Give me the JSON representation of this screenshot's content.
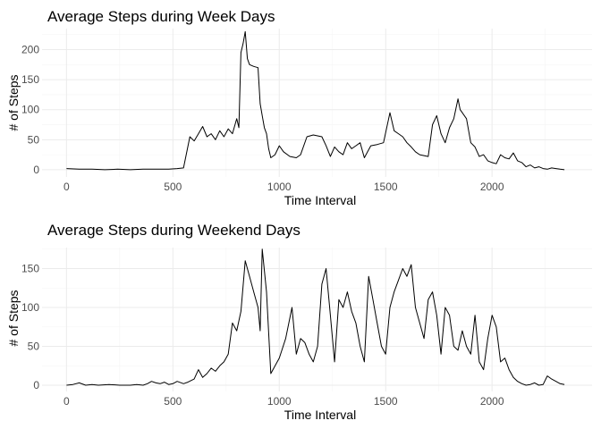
{
  "chart_data": [
    {
      "type": "line",
      "title": "Average Steps during Week Days",
      "xlabel": "Time Interval",
      "ylabel": "# of Steps",
      "xlim": [
        -115,
        2470
      ],
      "ylim": [
        -12,
        235
      ],
      "xticks": [
        0,
        500,
        1000,
        1500,
        2000
      ],
      "yticks": [
        0,
        50,
        100,
        150,
        200
      ],
      "grid": true,
      "series": [
        {
          "x": [
            0,
            60,
            120,
            180,
            240,
            300,
            360,
            420,
            480,
            520,
            550,
            580,
            600,
            620,
            640,
            660,
            680,
            700,
            720,
            740,
            760,
            780,
            800,
            810,
            820,
            830,
            840,
            850,
            860,
            880,
            900,
            910,
            920,
            930,
            940,
            950,
            960,
            980,
            1000,
            1020,
            1050,
            1080,
            1100,
            1130,
            1160,
            1200,
            1220,
            1240,
            1260,
            1280,
            1300,
            1320,
            1340,
            1360,
            1380,
            1400,
            1430,
            1460,
            1490,
            1520,
            1540,
            1560,
            1580,
            1600,
            1620,
            1640,
            1660,
            1700,
            1720,
            1740,
            1760,
            1780,
            1800,
            1820,
            1840,
            1850,
            1860,
            1880,
            1900,
            1920,
            1940,
            1960,
            1980,
            2000,
            2020,
            2040,
            2060,
            2080,
            2100,
            2120,
            2140,
            2160,
            2180,
            2200,
            2220,
            2240,
            2260,
            2280,
            2300,
            2320,
            2340
          ],
          "y": [
            2,
            1,
            1,
            0,
            1,
            0,
            1,
            1,
            1,
            2,
            3,
            55,
            48,
            60,
            72,
            55,
            60,
            50,
            65,
            55,
            68,
            60,
            85,
            70,
            195,
            210,
            230,
            185,
            175,
            172,
            170,
            110,
            90,
            70,
            60,
            35,
            20,
            25,
            40,
            30,
            22,
            20,
            25,
            55,
            58,
            55,
            40,
            22,
            38,
            30,
            25,
            45,
            35,
            40,
            45,
            20,
            40,
            42,
            45,
            95,
            65,
            60,
            55,
            45,
            38,
            30,
            25,
            22,
            75,
            90,
            60,
            45,
            70,
            85,
            118,
            100,
            95,
            85,
            45,
            38,
            22,
            25,
            15,
            12,
            10,
            25,
            20,
            18,
            28,
            15,
            12,
            5,
            8,
            3,
            5,
            2,
            1,
            3,
            2,
            1,
            0
          ]
        }
      ]
    },
    {
      "type": "line",
      "title": "Average Steps during Weekend Days",
      "xlabel": "Time Interval",
      "ylabel": "# of Steps",
      "xlim": [
        -115,
        2470
      ],
      "ylim": [
        -8,
        177
      ],
      "xticks": [
        0,
        500,
        1000,
        1500,
        2000
      ],
      "yticks": [
        0,
        50,
        100,
        150
      ],
      "grid": true,
      "series": [
        {
          "x": [
            0,
            30,
            60,
            90,
            120,
            150,
            200,
            250,
            300,
            330,
            360,
            380,
            400,
            420,
            440,
            460,
            480,
            500,
            520,
            550,
            570,
            600,
            620,
            640,
            660,
            680,
            700,
            720,
            740,
            760,
            780,
            800,
            820,
            840,
            860,
            880,
            900,
            910,
            920,
            940,
            960,
            1000,
            1030,
            1060,
            1080,
            1100,
            1120,
            1140,
            1160,
            1180,
            1200,
            1220,
            1240,
            1260,
            1280,
            1300,
            1320,
            1340,
            1360,
            1380,
            1400,
            1420,
            1440,
            1460,
            1480,
            1500,
            1520,
            1540,
            1560,
            1580,
            1600,
            1620,
            1640,
            1660,
            1680,
            1700,
            1720,
            1740,
            1760,
            1780,
            1800,
            1820,
            1840,
            1860,
            1880,
            1900,
            1920,
            1940,
            1960,
            1980,
            2000,
            2020,
            2040,
            2060,
            2080,
            2100,
            2120,
            2140,
            2160,
            2180,
            2200,
            2220,
            2240,
            2260,
            2280,
            2300,
            2320,
            2340
          ],
          "y": [
            0,
            1,
            3,
            0,
            1,
            0,
            1,
            0,
            0,
            1,
            0,
            2,
            5,
            3,
            2,
            4,
            1,
            2,
            5,
            2,
            4,
            8,
            20,
            10,
            15,
            22,
            18,
            25,
            30,
            40,
            80,
            70,
            95,
            160,
            140,
            120,
            100,
            70,
            175,
            120,
            15,
            35,
            60,
            100,
            40,
            60,
            55,
            40,
            30,
            50,
            130,
            150,
            90,
            30,
            110,
            100,
            120,
            95,
            80,
            50,
            30,
            140,
            110,
            80,
            50,
            40,
            100,
            120,
            135,
            150,
            140,
            155,
            100,
            80,
            60,
            110,
            120,
            90,
            40,
            100,
            90,
            50,
            45,
            70,
            50,
            40,
            90,
            30,
            20,
            60,
            90,
            75,
            30,
            35,
            20,
            10,
            5,
            2,
            0,
            1,
            3,
            0,
            1,
            12,
            8,
            5,
            2,
            1
          ]
        }
      ]
    }
  ]
}
